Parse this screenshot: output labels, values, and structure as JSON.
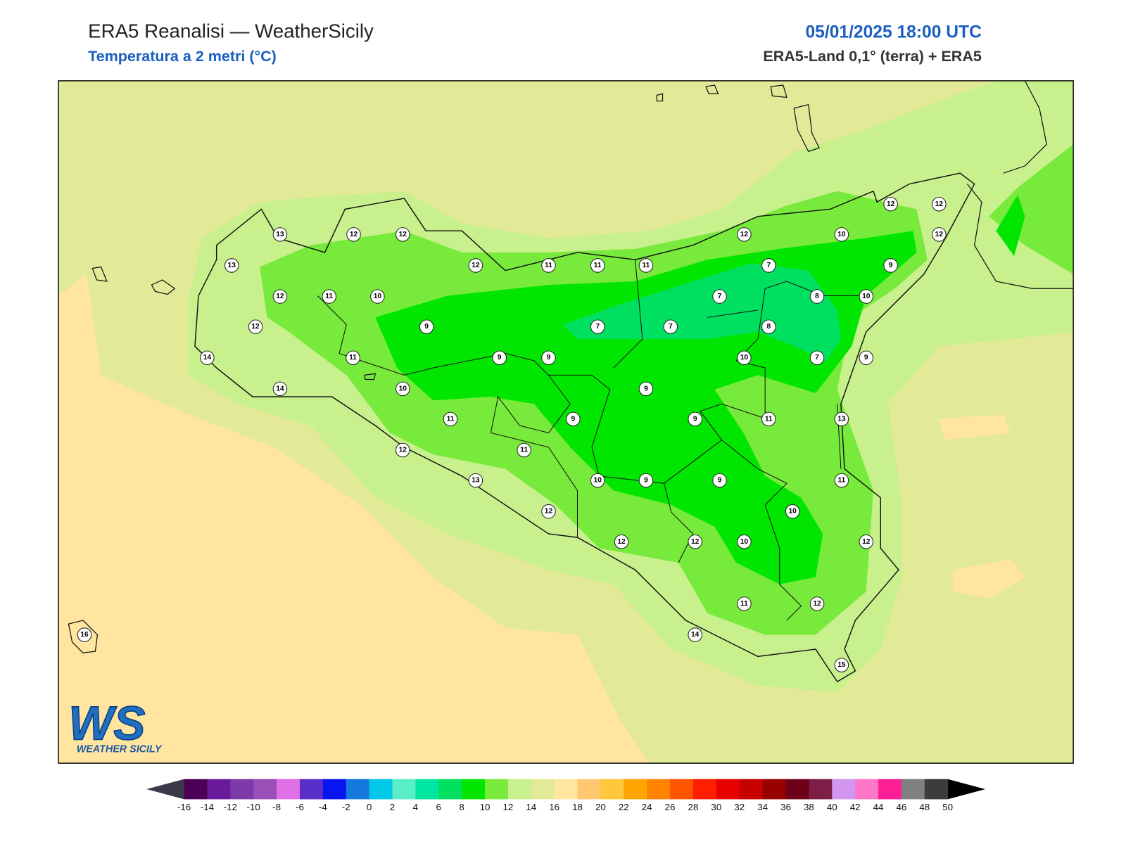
{
  "header": {
    "title": "ERA5 Reanalisi — WeatherSicily",
    "subtitle": "Temperatura a 2 metri (°C)",
    "datetime": "05/01/2025 18:00 UTC",
    "source": "ERA5-Land 0,1° (terra) + ERA5"
  },
  "stations": {
    "values": [
      13,
      12,
      12,
      13,
      12,
      11,
      10,
      12,
      9,
      14,
      11,
      14,
      10,
      12,
      11,
      11,
      11,
      12,
      10,
      12,
      12,
      12,
      9,
      7,
      7,
      8,
      10,
      7,
      7,
      8,
      9,
      9,
      10,
      7,
      9,
      9,
      11,
      9,
      9,
      11,
      13,
      12,
      11,
      13,
      10,
      9,
      9,
      11,
      12,
      10,
      12,
      12,
      10,
      12,
      11,
      12,
      14,
      15,
      16
    ]
  },
  "colorbar": {
    "ticks": [
      -16,
      -14,
      -12,
      -10,
      -8,
      -6,
      -4,
      -2,
      0,
      2,
      4,
      6,
      8,
      10,
      12,
      14,
      16,
      18,
      20,
      22,
      24,
      26,
      28,
      30,
      32,
      34,
      36,
      38,
      40,
      42,
      44,
      46,
      48,
      50
    ],
    "colors": [
      "#4b0055",
      "#6a1a9a",
      "#7d3aa8",
      "#9a4fb8",
      "#e070e8",
      "#5a2ec8",
      "#0a14f0",
      "#1478dc",
      "#00c8e6",
      "#5aeec8",
      "#00e6a0",
      "#00e060",
      "#00e600",
      "#78ea3c",
      "#c8f08c",
      "#e2ea98",
      "#ffe5a0",
      "#ffc870",
      "#ffc83c",
      "#ffa500",
      "#ff8200",
      "#ff5500",
      "#ff1e00",
      "#e60000",
      "#c80000",
      "#960000",
      "#6e0019",
      "#7d1e46",
      "#d296f0",
      "#ff78c8",
      "#ff1e96",
      "#808080",
      "#3c3c3c"
    ],
    "under_color": "#3a3a4a",
    "over_color": "#000000"
  },
  "logo": {
    "mark": "WS",
    "name": "WEATHER SICILY"
  }
}
